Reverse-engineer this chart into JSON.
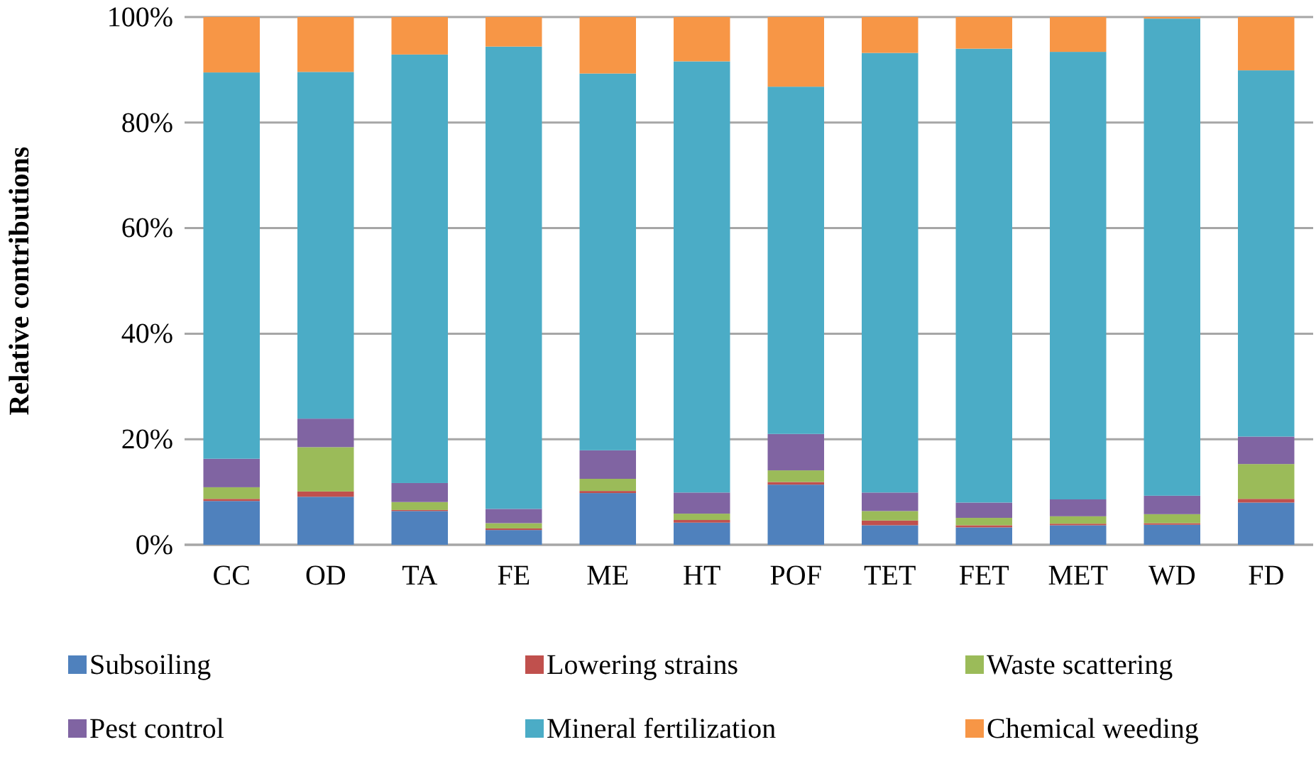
{
  "chart_data": {
    "type": "bar",
    "stacked": true,
    "ylabel": "Relative contributions",
    "categories": [
      "CC",
      "OD",
      "TA",
      "FE",
      "ME",
      "HT",
      "POF",
      "TET",
      "FET",
      "MET",
      "WD",
      "FD"
    ],
    "series": [
      {
        "name": "Subsoiling",
        "color": "#4f81bd",
        "values": [
          8.3,
          9.1,
          6.4,
          2.8,
          9.8,
          4.2,
          11.4,
          3.7,
          3.3,
          3.7,
          3.8,
          8.0
        ]
      },
      {
        "name": "Lowering strains",
        "color": "#c0504d",
        "values": [
          0.4,
          1.0,
          0.2,
          0.3,
          0.4,
          0.5,
          0.5,
          0.9,
          0.4,
          0.3,
          0.3,
          0.7
        ]
      },
      {
        "name": "Waste scattering",
        "color": "#9bbb59",
        "values": [
          2.2,
          8.4,
          1.5,
          1.0,
          2.3,
          1.2,
          2.2,
          1.8,
          1.4,
          1.4,
          1.7,
          6.6
        ]
      },
      {
        "name": "Pest control",
        "color": "#8064a2",
        "values": [
          5.4,
          5.4,
          3.6,
          2.7,
          5.4,
          4.0,
          6.9,
          3.5,
          2.9,
          3.2,
          3.5,
          5.2
        ]
      },
      {
        "name": "Mineral fertilization",
        "color": "#4bacc6",
        "values": [
          73.2,
          65.7,
          81.2,
          87.6,
          71.4,
          81.7,
          65.8,
          83.3,
          86.0,
          84.8,
          90.4,
          69.4
        ]
      },
      {
        "name": "Chemical weeding",
        "color": "#f79646",
        "values": [
          10.5,
          10.4,
          7.1,
          5.6,
          10.7,
          8.4,
          13.2,
          6.8,
          6.0,
          6.6,
          0.3,
          10.1
        ]
      }
    ],
    "ylim": [
      0,
      100
    ],
    "yticks": [
      {
        "value": 0,
        "label": "0%"
      },
      {
        "value": 20,
        "label": "20%"
      },
      {
        "value": 40,
        "label": "40%"
      },
      {
        "value": 60,
        "label": "60%"
      },
      {
        "value": 80,
        "label": "80%"
      },
      {
        "value": 100,
        "label": "100%"
      }
    ],
    "grid": "y",
    "legend": "bottom"
  }
}
